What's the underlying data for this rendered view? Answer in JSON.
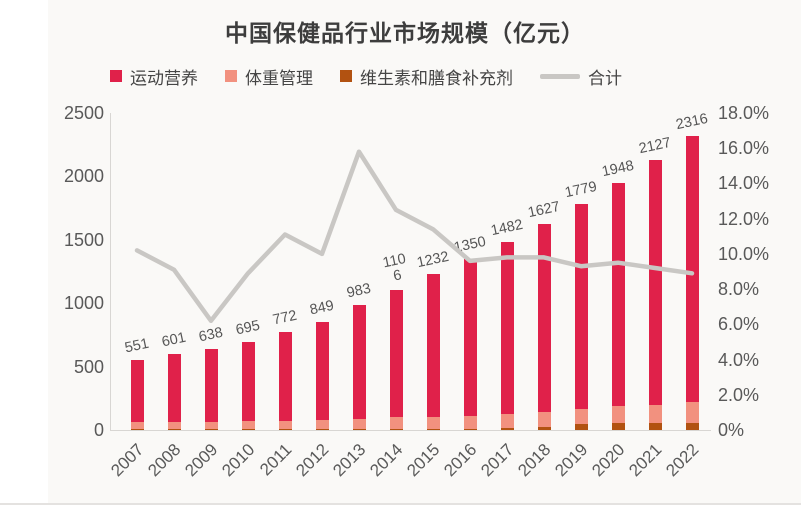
{
  "chart_data": {
    "type": "bar",
    "subtype": "stacked-bars-with-line",
    "title": "中国保健品行业市场规模（亿元）",
    "legend_position": "top",
    "grid": false,
    "categories": [
      "2007",
      "2008",
      "2009",
      "2010",
      "2011",
      "2012",
      "2013",
      "2014",
      "2015",
      "2016",
      "2017",
      "2018",
      "2019",
      "2020",
      "2021",
      "2022"
    ],
    "series": [
      {
        "name": "运动营养",
        "type": "bar-segment-top",
        "color": "#e0214a",
        "values": [
          491,
          538,
          571,
          625,
          699,
          772,
          898,
          1006,
          1126,
          1237,
          1358,
          1484,
          1612,
          1758,
          1930,
          2096
        ]
      },
      {
        "name": "体重管理",
        "type": "bar-segment-middle",
        "color": "#f2917f",
        "values": [
          55,
          58,
          62,
          65,
          68,
          72,
          80,
          92,
          98,
          105,
          112,
          118,
          122,
          138,
          142,
          162
        ]
      },
      {
        "name": "维生素和膳食补充剂",
        "type": "bar-segment-bottom",
        "color": "#b25211",
        "values": [
          5,
          5,
          5,
          5,
          5,
          5,
          5,
          8,
          8,
          8,
          12,
          25,
          45,
          52,
          55,
          58
        ]
      },
      {
        "name": "合计",
        "type": "line",
        "axis": "right",
        "color": "#c9c7c4",
        "unit": "%",
        "values": [
          10.2,
          9.1,
          6.2,
          8.9,
          11.1,
          10.0,
          15.8,
          12.5,
          11.4,
          9.6,
          9.8,
          9.8,
          9.3,
          9.5,
          9.2,
          8.9
        ]
      }
    ],
    "totals": [
      551,
      601,
      638,
      695,
      772,
      849,
      983,
      1106,
      1232,
      1350,
      1482,
      1627,
      1779,
      1948,
      2127,
      2316
    ],
    "total_labels": [
      "551",
      "601",
      "638",
      "695",
      "772",
      "849",
      "983",
      "110\n6",
      "1232",
      "1350",
      "1482",
      "1627",
      "1779",
      "1948",
      "2127",
      "2316"
    ],
    "left_axis": {
      "min": 0,
      "max": 2500,
      "ticks": [
        "2500",
        "2000",
        "1500",
        "1000",
        "500",
        "0"
      ]
    },
    "right_axis": {
      "min": 0,
      "max": 18,
      "ticks": [
        "18.0%",
        "16.0%",
        "14.0%",
        "12.0%",
        "10.0%",
        "8.0%",
        "6.0%",
        "4.0%",
        "2.0%",
        "0%"
      ]
    }
  },
  "colors": {
    "slide_background": "#faf9f7",
    "axis_text": "#595959",
    "title_text": "#3d3d3d",
    "axis_line": "#d8d6d3"
  }
}
